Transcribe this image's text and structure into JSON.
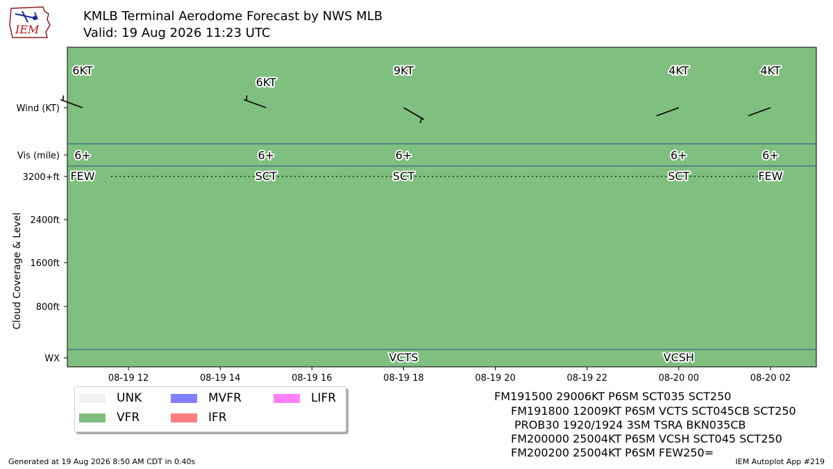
{
  "header": {
    "title_line1": "KMLB Terminal Aerodome Forecast by NWS MLB",
    "title_line2": "Valid: 19 Aug 2026 11:23 UTC",
    "logo_text": "IEM"
  },
  "chart_data": {
    "type": "timeline",
    "flight_category": "VFR",
    "xlim": [
      "08-19 10:40",
      "08-20 03:00"
    ],
    "x_ticks": [
      "08-19 12",
      "08-19 14",
      "08-19 16",
      "08-19 18",
      "08-19 20",
      "08-19 22",
      "08-20 00",
      "08-20 02"
    ],
    "y_ticks": [
      "Wind (KT)",
      "Vis (mile)",
      "3200+ft",
      "2400ft",
      "1600ft",
      "800ft",
      "WX"
    ],
    "ylabel": "Cloud Coverage & Level",
    "forecasts": [
      {
        "time": "08-19 11:00",
        "wind_dir": 290,
        "wind_speed": 6,
        "wind_label": "6KT",
        "vis": "6+",
        "cloud": "FEW",
        "wx": ""
      },
      {
        "time": "08-19 15:00",
        "wind_dir": 290,
        "wind_speed": 6,
        "wind_label": "6KT",
        "vis": "6+",
        "cloud": "SCT",
        "wx": ""
      },
      {
        "time": "08-19 18:00",
        "wind_dir": 120,
        "wind_speed": 9,
        "wind_label": "9KT",
        "vis": "6+",
        "cloud": "SCT",
        "wx": "VCTS"
      },
      {
        "time": "08-20 00:00",
        "wind_dir": 250,
        "wind_speed": 4,
        "wind_label": "4KT",
        "vis": "6+",
        "cloud": "SCT",
        "wx": "VCSH"
      },
      {
        "time": "08-20 02:00",
        "wind_dir": 250,
        "wind_speed": 4,
        "wind_label": "4KT",
        "vis": "6+",
        "cloud": "FEW",
        "wx": ""
      }
    ]
  },
  "legend": {
    "items": [
      {
        "label": "UNK",
        "color": "#f2f2f2"
      },
      {
        "label": "VFR",
        "color": "#7fbf7f"
      },
      {
        "label": "MVFR",
        "color": "#7f7fff"
      },
      {
        "label": "IFR",
        "color": "#ff7f7f"
      },
      {
        "label": "LIFR",
        "color": "#ff7fff"
      }
    ]
  },
  "taf_text": {
    "lines": [
      "FM191500 29006KT P6SM SCT035 SCT250",
      "FM191800 12009KT P6SM VCTS SCT045CB SCT250",
      "PROB30 1920/1924 3SM TSRA BKN035CB",
      "FM200000 25004KT P6SM VCSH SCT045 SCT250",
      "FM200200 25004KT P6SM FEW250="
    ]
  },
  "footer": {
    "generated": "Generated at 19 Aug 2026 8:50 AM CDT in 0.40s",
    "app": "IEM Autoplot App #219"
  },
  "colors": {
    "vfr": "#7fbf7f",
    "row_line": "#2b4f8f"
  }
}
